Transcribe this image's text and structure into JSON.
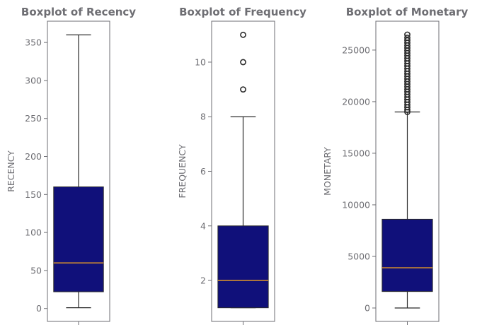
{
  "chart_data": [
    {
      "type": "boxplot",
      "title": "Boxplot of Recency",
      "xlabel": "",
      "ylabel": "RECENCY",
      "ylim": [
        -17,
        378
      ],
      "yticks": [
        0,
        50,
        100,
        150,
        200,
        250,
        300,
        350
      ],
      "box": {
        "whisker_low": 1,
        "q1": 22,
        "median": 60,
        "q3": 160,
        "whisker_high": 360
      },
      "outliers": [],
      "colors": {
        "box": "#10107a",
        "median": "#f0a020",
        "line": "#2b2b2b"
      }
    },
    {
      "type": "boxplot",
      "title": "Boxplot of Frequency",
      "xlabel": "",
      "ylabel": "FREQUENCY",
      "ylim": [
        0.5,
        11.5
      ],
      "yticks": [
        2,
        4,
        6,
        8,
        10
      ],
      "box": {
        "whisker_low": 1,
        "q1": 1,
        "median": 2,
        "q3": 4,
        "whisker_high": 8
      },
      "outliers": [
        9,
        10,
        11
      ],
      "colors": {
        "box": "#10107a",
        "median": "#f0a020",
        "line": "#2b2b2b"
      }
    },
    {
      "type": "boxplot",
      "title": "Boxplot of Monetary",
      "xlabel": "",
      "ylabel": "MONETARY",
      "ylim": [
        -1300,
        27800
      ],
      "yticks": [
        0,
        5000,
        10000,
        15000,
        20000,
        25000
      ],
      "box": {
        "whisker_low": 0,
        "q1": 1600,
        "median": 3900,
        "q3": 8600,
        "whisker_high": 19000
      },
      "outliers": [
        19000,
        19200,
        19450,
        19700,
        19950,
        20200,
        20450,
        20700,
        20950,
        21200,
        21450,
        21700,
        21950,
        22200,
        22450,
        22700,
        22950,
        23200,
        23450,
        23700,
        23950,
        24200,
        24450,
        24700,
        24950,
        25200,
        25450,
        25700,
        25950,
        26200,
        26500
      ],
      "colors": {
        "box": "#10107a",
        "median": "#f0a020",
        "line": "#2b2b2b"
      }
    }
  ]
}
